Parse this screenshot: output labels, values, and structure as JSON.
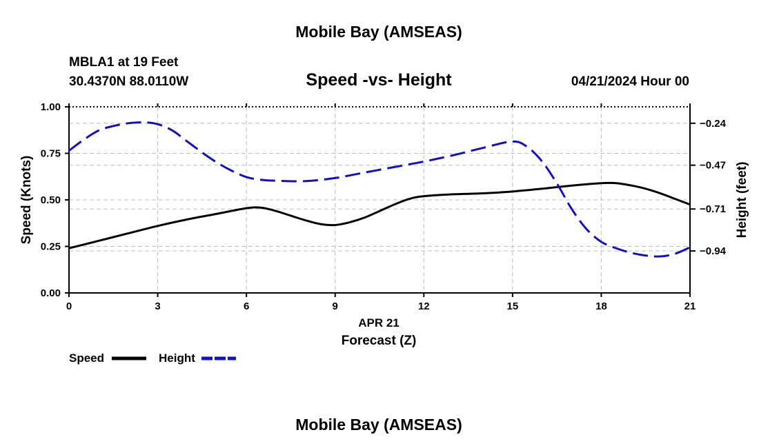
{
  "header": {
    "title": "Mobile Bay (AMSEAS)",
    "station_line": "MBLA1 at 19 Feet",
    "coords_line": "30.4370N  88.0110W",
    "date_line": "04/21/2024 Hour 00"
  },
  "footer": {
    "title": "Mobile Bay (AMSEAS)"
  },
  "legend": {
    "speed_label": "Speed",
    "height_label": "Height"
  },
  "chart_data": {
    "type": "line",
    "title": "Speed -vs- Height",
    "xlabel_top": "APR 21",
    "xlabel": "Forecast (Z)",
    "ylabel": "Speed (Knots)",
    "y2label": "Height (feet)",
    "xlim": [
      0,
      21
    ],
    "ylim": [
      0,
      1.0
    ],
    "y2lim": [
      -1.17,
      -0.15
    ],
    "x_ticks": [
      0,
      3,
      6,
      9,
      12,
      15,
      18,
      21
    ],
    "x_tick_labels": [
      "0",
      "3",
      "6",
      "9",
      "12",
      "15",
      "18",
      "21"
    ],
    "y_ticks": [
      0,
      0.25,
      0.5,
      0.75,
      1.0
    ],
    "y_tick_labels": [
      "0.00",
      "0.25",
      "0.50",
      "0.75",
      "1.00"
    ],
    "y2_ticks": [
      -0.24,
      -0.47,
      -0.71,
      -0.94
    ],
    "y2_tick_labels": [
      "−0.24",
      "−0.47",
      "−0.71",
      "−0.94"
    ],
    "grid": true,
    "colors": {
      "speed": "#000000",
      "height": "#1010c8",
      "grid": "#bbbbbb"
    },
    "series": [
      {
        "name": "Speed",
        "axis": "left",
        "style": "solid",
        "x": [
          0,
          1,
          2,
          3,
          4,
          5,
          6,
          6.5,
          7,
          7.5,
          8,
          8.5,
          9,
          9.5,
          10,
          10.5,
          11,
          11.5,
          12,
          13,
          14,
          15,
          16,
          17,
          18,
          18.5,
          19,
          19.5,
          20,
          20.5,
          21
        ],
        "values": [
          0.24,
          0.28,
          0.32,
          0.36,
          0.395,
          0.425,
          0.455,
          0.458,
          0.44,
          0.415,
          0.39,
          0.37,
          0.365,
          0.38,
          0.405,
          0.44,
          0.475,
          0.505,
          0.52,
          0.53,
          0.535,
          0.545,
          0.56,
          0.577,
          0.59,
          0.59,
          0.578,
          0.56,
          0.535,
          0.505,
          0.475
        ]
      },
      {
        "name": "Height",
        "axis": "right",
        "style": "dashed",
        "x": [
          0,
          0.5,
          1,
          1.5,
          2,
          2.5,
          3,
          3.5,
          4,
          4.5,
          5,
          5.5,
          6,
          6.5,
          7,
          8,
          9,
          10,
          11,
          12,
          13,
          14,
          15,
          15.5,
          16,
          16.5,
          17,
          17.5,
          18,
          18.5,
          19,
          19.5,
          20,
          20.5,
          21
        ],
        "values": [
          -0.39,
          -0.33,
          -0.28,
          -0.255,
          -0.24,
          -0.235,
          -0.245,
          -0.28,
          -0.34,
          -0.4,
          -0.455,
          -0.5,
          -0.535,
          -0.55,
          -0.555,
          -0.557,
          -0.54,
          -0.51,
          -0.48,
          -0.45,
          -0.415,
          -0.375,
          -0.34,
          -0.37,
          -0.45,
          -0.57,
          -0.71,
          -0.82,
          -0.89,
          -0.925,
          -0.95,
          -0.965,
          -0.97,
          -0.955,
          -0.92
        ]
      }
    ]
  }
}
